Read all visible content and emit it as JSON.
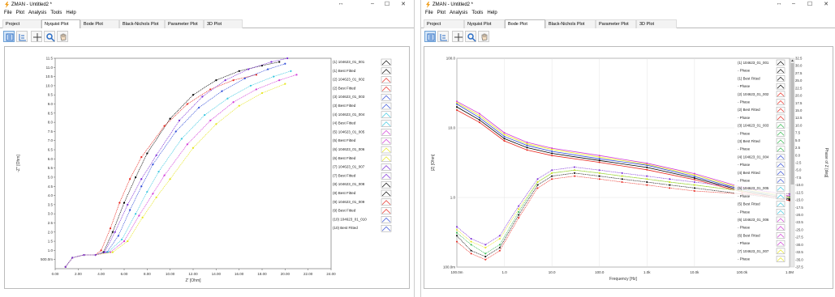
{
  "window1": {
    "title": "ZMAN - Untitled2 *",
    "menu": [
      "File",
      "Plot",
      "Analysis",
      "Tools",
      "Help"
    ],
    "tabs": [
      "Project",
      "Nyquist Plot",
      "Bode Plot",
      "Black-Nichols Plot",
      "Parameter Plot",
      "3D Plot"
    ],
    "active_tab": "Nyquist Plot",
    "controls": {
      "minimize": "–",
      "maximize": "☐",
      "close": "✕",
      "restore": "↔"
    }
  },
  "window2": {
    "title": "ZMAN - Untitled2 *",
    "menu": [
      "File",
      "Plot",
      "Analysis",
      "Tools",
      "Help"
    ],
    "tabs": [
      "Project",
      "Nyquist Plot",
      "Bode Plot",
      "Black-Nichols Plot",
      "Parameter Plot",
      "3D Plot"
    ],
    "active_tab": "Bode Plot",
    "controls": {
      "minimize": "–",
      "maximize": "☐",
      "close": "✕",
      "restore": "↔"
    }
  },
  "toolbar_icons": [
    "legend-layout-icon",
    "chart-options-icon",
    "crosshair-icon",
    "zoom-icon",
    "pan-hand-icon"
  ],
  "colors": {
    "black": "#000000",
    "red": "#e8271e",
    "green": "#2db84a",
    "blue": "#2f4bd8",
    "cyan": "#3ac8e0",
    "magenta": "#d23ad8",
    "yellow": "#e6e61e",
    "purple": "#7a2bd6",
    "orange": "#f08a1e",
    "pink": "#f07ad0"
  },
  "chart_data": [
    {
      "type": "line",
      "xlabel": "Z' [Ohm]",
      "ylabel": "-Z'' [Ohm]",
      "xlim": [
        0,
        24
      ],
      "ylim": [
        0,
        11.5
      ],
      "xticks": [
        "0.00",
        "2.00",
        "4.00",
        "6.00",
        "8.00",
        "10.00",
        "12.00",
        "14.00",
        "16.00",
        "18.00",
        "20.00",
        "22.00",
        "24.00"
      ],
      "yticks": [
        "500.0m",
        "1.0",
        "1.5",
        "2.0",
        "2.5",
        "3.0",
        "3.5",
        "4.0",
        "4.5",
        "5.0",
        "5.5",
        "6.0",
        "6.5",
        "7.0",
        "7.5",
        "8.0",
        "8.5",
        "9.0",
        "9.5",
        "10.0",
        "10.5",
        "11.0",
        "11.5"
      ],
      "legend": [
        "(1) 104623_01_001",
        "(1) Best Fitted",
        "(2) 104623_01_002",
        "(2) Best Fitted",
        "(3) 104623_01_003",
        "(3) Best Fitted",
        "(4) 104623_01_004",
        "(4) Best Fitted",
        "(5) 104623_01_005",
        "(5) Best Fitted",
        "(6) 104623_01_006",
        "(6) Best Fitted",
        "(7) 104623_01_007",
        "(7) Best Fitted",
        "(8) 104623_01_008",
        "(8) Best Fitted",
        "(9) 104623_01_009",
        "(9) Best Fitted",
        "(10) 104623_01_010",
        "(10) Best Fitted"
      ],
      "series": [
        {
          "color": "#000000",
          "x": [
            0.9,
            1.5,
            2.5,
            3.5,
            4.2,
            5.0,
            6.0,
            7.0,
            8.0,
            10.0,
            12.0,
            14.0,
            16.0,
            18.0,
            19.5
          ],
          "y": [
            0.1,
            0.6,
            0.75,
            0.75,
            0.9,
            2.0,
            3.6,
            5.0,
            6.3,
            8.2,
            9.5,
            10.3,
            10.8,
            11.1,
            11.3
          ]
        },
        {
          "color": "#e8271e",
          "x": [
            0.9,
            1.5,
            2.5,
            3.5,
            4.0,
            4.8,
            5.6,
            6.5,
            7.5,
            9.5,
            11.5,
            13.5,
            15.5,
            17.5
          ],
          "y": [
            0.1,
            0.6,
            0.75,
            0.75,
            1.0,
            2.2,
            3.6,
            4.9,
            6.1,
            7.8,
            9.0,
            9.8,
            10.3,
            10.6
          ]
        },
        {
          "color": "#2f4bd8",
          "x": [
            0.9,
            1.5,
            2.5,
            3.5,
            4.5,
            5.5,
            6.5,
            7.5,
            8.5,
            10.5,
            12.5,
            14.5,
            16.5,
            18.5,
            20.0
          ],
          "y": [
            0.1,
            0.6,
            0.75,
            0.75,
            0.9,
            1.8,
            3.2,
            4.5,
            5.7,
            7.5,
            8.8,
            9.7,
            10.4,
            10.9,
            11.2
          ]
        },
        {
          "color": "#3ac8e0",
          "x": [
            0.9,
            1.5,
            2.5,
            3.5,
            4.6,
            5.8,
            7.0,
            8.0,
            9.0,
            11.0,
            13.0,
            15.0,
            17.0,
            19.0,
            20.5
          ],
          "y": [
            0.1,
            0.6,
            0.75,
            0.75,
            0.9,
            1.6,
            3.0,
            4.2,
            5.3,
            7.1,
            8.4,
            9.3,
            10.0,
            10.5,
            10.8
          ]
        },
        {
          "color": "#d23ad8",
          "x": [
            0.9,
            1.5,
            2.5,
            3.5,
            4.8,
            6.0,
            7.3,
            8.5,
            9.5,
            11.5,
            13.5,
            15.5,
            17.5,
            19.5,
            21.0
          ],
          "y": [
            0.1,
            0.6,
            0.75,
            0.75,
            0.9,
            1.5,
            2.9,
            4.1,
            5.1,
            6.8,
            8.1,
            9.1,
            9.8,
            10.3,
            10.6
          ]
        },
        {
          "color": "#e6e61e",
          "x": [
            0.9,
            1.5,
            2.5,
            3.5,
            5.0,
            6.3,
            7.6,
            8.8,
            10.0,
            12.0,
            14.0,
            16.0,
            18.0,
            20.0
          ],
          "y": [
            0.1,
            0.6,
            0.75,
            0.75,
            0.9,
            1.5,
            2.8,
            3.9,
            4.9,
            6.6,
            7.9,
            8.9,
            9.6,
            10.1
          ]
        },
        {
          "color": "#7a2bd6",
          "x": [
            0.9,
            1.5,
            2.5,
            3.5,
            4.3,
            5.2,
            6.3,
            7.5,
            8.8,
            10.8,
            12.8,
            14.8,
            16.8,
            18.8,
            20.2
          ],
          "y": [
            0.1,
            0.6,
            0.75,
            0.75,
            0.9,
            2.0,
            3.5,
            4.9,
            6.2,
            8.1,
            9.4,
            10.3,
            10.9,
            11.3,
            11.5
          ]
        }
      ]
    },
    {
      "type": "line",
      "xlabel": "Frequency [Hz]",
      "ylabel": "|Z| [Ohm]",
      "y2label": "Phase of Z [deg]",
      "xscale": "log",
      "yscale": "log",
      "xlim": [
        0.1,
        1000000
      ],
      "ylim": [
        0.1,
        100
      ],
      "y2lim": [
        -37.5,
        32.5
      ],
      "xticks": [
        "100.0m",
        "1.0",
        "10.0",
        "100.0",
        "1.0k",
        "10.0k",
        "100.0k",
        "1.0M"
      ],
      "yticks": [
        "100.0",
        "10.0",
        "1.0",
        "100.0m"
      ],
      "y2ticks": [
        "32.5",
        "30.0",
        "27.5",
        "25.0",
        "22.5",
        "20.0",
        "17.5",
        "15.0",
        "12.5",
        "10.0",
        "7.5",
        "5.0",
        "2.5",
        "0.0",
        "-2.5",
        "-5.0",
        "-7.5",
        "-10.0",
        "-12.5",
        "-15.0",
        "-17.5",
        "-20.0",
        "-22.5",
        "-25.0",
        "-27.5",
        "-30.0",
        "-32.5",
        "-35.0",
        "-37.5"
      ],
      "legend": [
        "(1) 104623_01_001",
        "- Phase",
        "(1) Best Fitted",
        "- Phase",
        "(2) 104623_01_002",
        "- Phase",
        "(2) Best Fitted",
        "- Phase",
        "(3) 104623_01_003",
        "- Phase",
        "(3) Best Fitted",
        "- Phase",
        "(4) 104623_01_004",
        "- Phase",
        "(4) Best Fitted",
        "- Phase",
        "(5) 104623_01_005",
        "- Phase",
        "(5) Best Fitted",
        "- Phase",
        "(6) 104623_01_006",
        "- Phase",
        "(6) Best Fitted",
        "- Phase",
        "(7) 104623_01_007",
        "- Phase"
      ],
      "magnitude_series": [
        {
          "color": "#e8271e",
          "x": [
            0.1,
            0.3,
            1,
            3,
            10,
            100,
            1000,
            10000,
            100000,
            1000000
          ],
          "y": [
            18,
            12,
            6.5,
            4.8,
            4.0,
            3.2,
            2.5,
            1.8,
            1.2,
            0.9
          ]
        },
        {
          "color": "#000000",
          "x": [
            0.1,
            0.3,
            1,
            3,
            10,
            100,
            1000,
            10000,
            100000,
            1000000
          ],
          "y": [
            20,
            13,
            7.0,
            5.2,
            4.3,
            3.4,
            2.7,
            1.9,
            1.25,
            0.95
          ]
        },
        {
          "color": "#2f4bd8",
          "x": [
            0.1,
            0.3,
            1,
            3,
            10,
            100,
            1000,
            10000,
            100000,
            1000000
          ],
          "y": [
            22,
            14,
            7.5,
            5.6,
            4.6,
            3.6,
            2.9,
            2.0,
            1.3,
            1.0
          ]
        },
        {
          "color": "#e6e61e",
          "x": [
            0.1,
            0.3,
            1,
            3,
            10,
            100,
            1000,
            10000,
            100000,
            1000000
          ],
          "y": [
            23,
            15,
            8.0,
            5.9,
            4.9,
            3.8,
            3.0,
            2.1,
            1.35,
            1.0
          ]
        },
        {
          "color": "#d23ad8",
          "x": [
            0.1,
            0.3,
            1,
            3,
            10,
            100,
            1000,
            10000,
            100000,
            1000000
          ],
          "y": [
            24,
            16,
            8.5,
            6.2,
            5.1,
            4.0,
            3.1,
            2.2,
            1.4,
            1.05
          ]
        }
      ],
      "phase_series": [
        {
          "color": "#000000",
          "x": [
            0.1,
            0.2,
            0.4,
            0.8,
            2,
            5,
            10,
            30,
            100,
            300,
            1000,
            3000,
            10000,
            100000,
            1000000
          ],
          "y": [
            -27,
            -32,
            -34,
            -31,
            -20,
            -10,
            -7,
            -6,
            -7,
            -8,
            -9,
            -10,
            -11,
            -13,
            -15
          ]
        },
        {
          "color": "#e8271e",
          "x": [
            0.1,
            0.2,
            0.4,
            0.8,
            2,
            5,
            10,
            30,
            100,
            300,
            1000,
            3000,
            10000,
            100000,
            1000000
          ],
          "y": [
            -29,
            -33,
            -35,
            -32,
            -21,
            -11,
            -8,
            -7,
            -8,
            -9,
            -10,
            -11,
            -12,
            -13,
            -14
          ]
        },
        {
          "color": "#2db84a",
          "x": [
            0.1,
            0.2,
            0.4,
            0.8,
            2,
            5,
            10,
            30,
            100,
            300,
            1000,
            3000,
            10000,
            100000,
            1000000
          ],
          "y": [
            -26,
            -30,
            -33,
            -30,
            -19,
            -9,
            -6,
            -5,
            -6,
            -7,
            -8,
            -9,
            -10,
            -12,
            -14
          ]
        },
        {
          "color": "#e6e61e",
          "x": [
            0.1,
            0.2,
            0.4,
            0.8,
            2,
            5,
            10,
            30,
            100,
            300,
            1000,
            3000,
            10000,
            100000,
            1000000
          ],
          "y": [
            -25,
            -29,
            -31,
            -28,
            -18,
            -9,
            -6,
            -5,
            -6,
            -7,
            -8,
            -9,
            -10,
            -12,
            -13
          ]
        },
        {
          "color": "#7a2bd6",
          "x": [
            0.1,
            0.2,
            0.4,
            0.8,
            2,
            5,
            10,
            30,
            100,
            300,
            1000,
            3000,
            10000,
            100000,
            1000000
          ],
          "y": [
            -24,
            -28,
            -30,
            -27,
            -17,
            -8,
            -5,
            -4,
            -5,
            -6,
            -7,
            -8,
            -9,
            -11,
            -13
          ]
        }
      ]
    }
  ]
}
